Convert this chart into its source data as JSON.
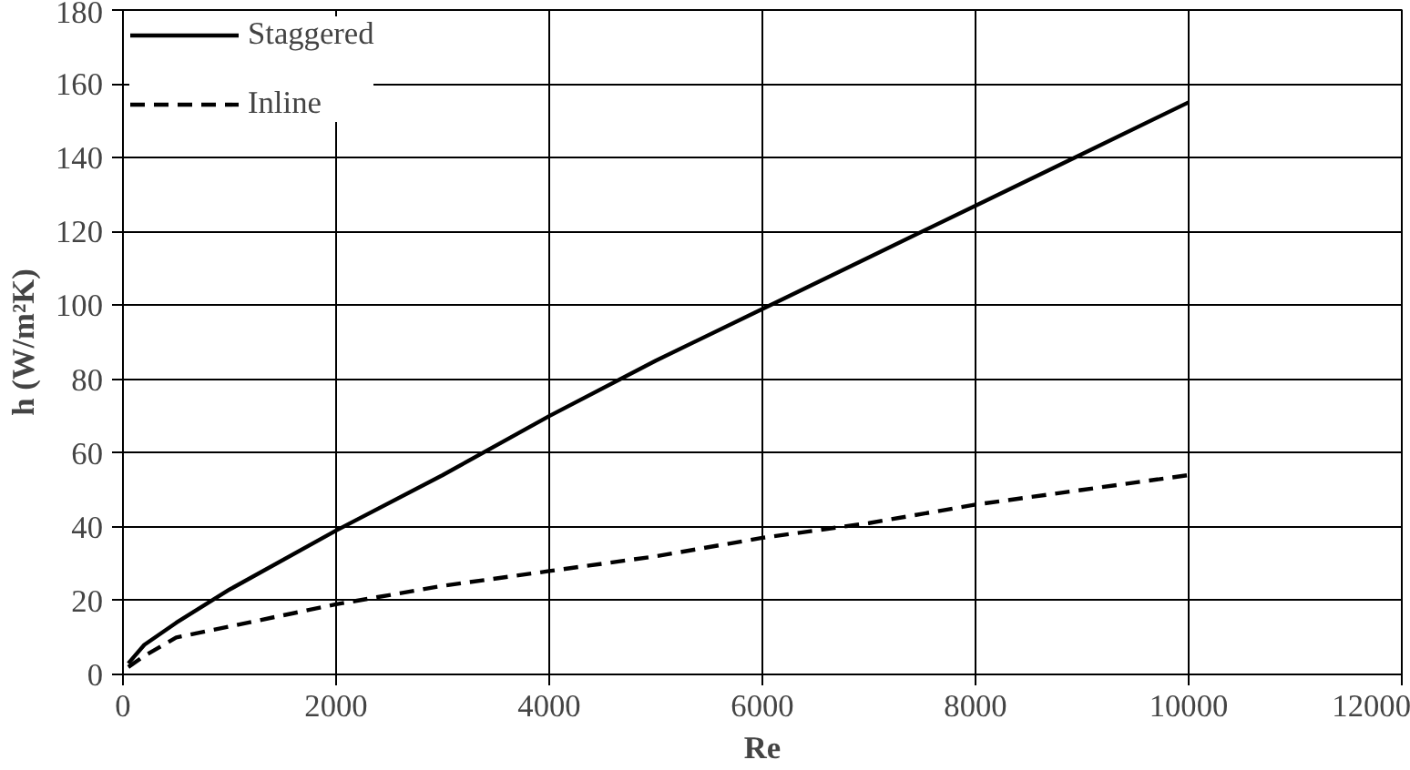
{
  "chart_data": {
    "type": "line",
    "xlabel": "Re",
    "ylabel": "h (W/m²K)",
    "xlim": [
      0,
      12000
    ],
    "xticks": [
      0,
      2000,
      4000,
      6000,
      8000,
      10000,
      12000
    ],
    "ylim": [
      0,
      180
    ],
    "yticks": [
      0,
      20,
      40,
      60,
      80,
      100,
      120,
      140,
      160,
      180
    ],
    "grid": true,
    "legend": "top left",
    "series": [
      {
        "name": "Staggered",
        "color": "#000000",
        "line_style": "solid",
        "x": [
          50,
          200,
          500,
          1000,
          2000,
          3000,
          4000,
          5000,
          6000,
          7000,
          8000,
          9000,
          10000
        ],
        "values": [
          3,
          8,
          14,
          23,
          39,
          54,
          70,
          85,
          99,
          113,
          127,
          141,
          155
        ]
      },
      {
        "name": "Inline",
        "color": "#000000",
        "line_style": "dashed",
        "x": [
          50,
          200,
          500,
          1000,
          2000,
          3000,
          4000,
          5000,
          6000,
          7000,
          8000,
          9000,
          10000
        ],
        "values": [
          2,
          5,
          10,
          13,
          19,
          24,
          28,
          32,
          37,
          41,
          46,
          50,
          54
        ]
      }
    ]
  }
}
